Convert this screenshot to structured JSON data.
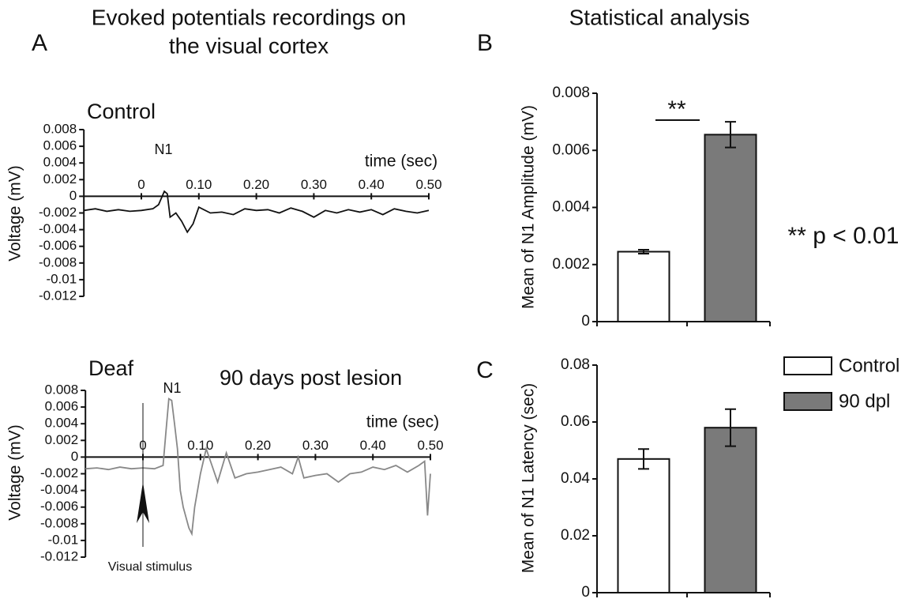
{
  "headings": [
    "Evoked potentials recordings on",
    "the visual cortex",
    "Statistical analysis"
  ],
  "panel_labels": [
    "A",
    "B",
    "C"
  ],
  "chart_data": [
    {
      "type": "line",
      "title": "Control",
      "x_label": "time (sec)",
      "y_label": "Voltage (mV)",
      "annotations": [
        "N1"
      ],
      "color": "#111111",
      "xlim": [
        -0.1,
        0.5
      ],
      "xticks": [
        0,
        {
          "value": 0.1,
          "label": "0.10"
        },
        {
          "value": 0.2,
          "label": "0.20"
        },
        {
          "value": 0.3,
          "label": "0.30"
        },
        {
          "value": 0.4,
          "label": "0.40"
        },
        {
          "value": 0.5,
          "label": "0.50"
        }
      ],
      "ylim": [
        -0.012,
        0.008
      ],
      "yticks": [
        0.008,
        0.006,
        0.004,
        0.002,
        0,
        -0.002,
        -0.004,
        -0.006,
        -0.008,
        -0.01,
        -0.012
      ],
      "x": [
        -0.1,
        -0.08,
        -0.06,
        -0.04,
        -0.02,
        0,
        0.02,
        0.03,
        0.04,
        0.045,
        0.05,
        0.06,
        0.07,
        0.08,
        0.09,
        0.1,
        0.12,
        0.14,
        0.16,
        0.18,
        0.2,
        0.22,
        0.24,
        0.26,
        0.28,
        0.3,
        0.32,
        0.34,
        0.36,
        0.38,
        0.4,
        0.42,
        0.44,
        0.46,
        0.48,
        0.5
      ],
      "values": [
        -0.0017,
        -0.0015,
        -0.0018,
        -0.0016,
        -0.0018,
        -0.0017,
        -0.0015,
        -0.001,
        0.0006,
        0.0003,
        -0.0025,
        -0.002,
        -0.003,
        -0.0043,
        -0.0033,
        -0.0013,
        -0.002,
        -0.0019,
        -0.0022,
        -0.0015,
        -0.0017,
        -0.0016,
        -0.002,
        -0.0014,
        -0.0018,
        -0.0025,
        -0.0017,
        -0.002,
        -0.0016,
        -0.0019,
        -0.0016,
        -0.0022,
        -0.0015,
        -0.0018,
        -0.002,
        -0.0017
      ]
    },
    {
      "type": "line",
      "title": "Deaf",
      "subtitle": "90 days post lesion",
      "x_label": "time (sec)",
      "y_label": "Voltage (mV)",
      "annotations": [
        "N1",
        "Visual stimulus"
      ],
      "color": "#888888",
      "xlim": [
        -0.1,
        0.5
      ],
      "xticks": [
        0,
        {
          "value": 0.1,
          "label": "0.10"
        },
        {
          "value": 0.2,
          "label": "0.20"
        },
        {
          "value": 0.3,
          "label": "0.30"
        },
        {
          "value": 0.4,
          "label": "0.40"
        },
        {
          "value": 0.5,
          "label": "0.50"
        }
      ],
      "ylim": [
        -0.012,
        0.008
      ],
      "yticks": [
        0.008,
        0.006,
        0.004,
        0.002,
        0,
        -0.002,
        -0.004,
        -0.006,
        -0.008,
        -0.01,
        -0.012
      ],
      "x": [
        -0.1,
        -0.08,
        -0.06,
        -0.04,
        -0.02,
        0,
        0.02,
        0.035,
        0.04,
        0.045,
        0.05,
        0.055,
        0.06,
        0.065,
        0.07,
        0.08,
        0.085,
        0.09,
        0.1,
        0.11,
        0.12,
        0.13,
        0.145,
        0.16,
        0.18,
        0.2,
        0.22,
        0.24,
        0.26,
        0.27,
        0.28,
        0.3,
        0.32,
        0.34,
        0.36,
        0.38,
        0.4,
        0.42,
        0.44,
        0.46,
        0.48,
        0.49,
        0.495,
        0.5
      ],
      "values": [
        -0.0014,
        -0.0013,
        -0.0015,
        -0.0012,
        -0.0014,
        -0.0013,
        -0.0014,
        -0.001,
        0.003,
        0.007,
        0.0068,
        0.004,
        0.001,
        -0.004,
        -0.006,
        -0.0085,
        -0.0092,
        -0.006,
        -0.002,
        0.001,
        -0.001,
        -0.003,
        0.0005,
        -0.0025,
        -0.002,
        -0.0018,
        -0.0015,
        -0.0012,
        -0.002,
        0,
        -0.0025,
        -0.0022,
        -0.002,
        -0.003,
        -0.002,
        -0.0018,
        -0.0012,
        -0.0015,
        -0.001,
        -0.0018,
        -0.001,
        -0.0005,
        -0.007,
        -0.002
      ]
    },
    {
      "type": "bar",
      "y_label": "Mean of N1 Amplitude (mV)",
      "annotations": [
        "**",
        "** p < 0.01"
      ],
      "ylim": [
        0,
        0.008
      ],
      "yticks": [
        0,
        0.002,
        0.004,
        0.006,
        0.008
      ],
      "series": [
        {
          "color": "#ffffff",
          "values": [
            0.00245
          ],
          "errors": [
            7e-05
          ]
        },
        {
          "color": "#7a7a7a",
          "values": [
            0.00655
          ],
          "errors": [
            0.00045
          ]
        }
      ]
    },
    {
      "type": "bar",
      "y_label": "Mean of N1 Latency (sec)",
      "ylim": [
        0,
        0.08
      ],
      "yticks": [
        0,
        0.02,
        0.04,
        0.06,
        0.08
      ],
      "series": [
        {
          "name": "Control",
          "color": "#ffffff",
          "values": [
            0.047
          ],
          "errors": [
            0.0035
          ]
        },
        {
          "name": "90 dpl",
          "color": "#7a7a7a",
          "values": [
            0.058
          ],
          "errors": [
            0.0065
          ]
        }
      ]
    }
  ]
}
